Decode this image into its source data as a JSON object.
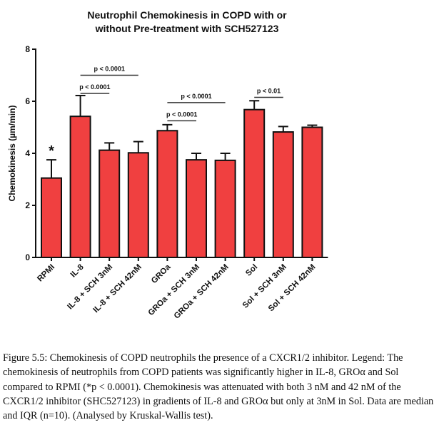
{
  "chart_data": {
    "type": "bar",
    "title": [
      "Neutrophil Chemokinesis in COPD with or",
      "without Pre-treatment with SCH527123"
    ],
    "xlabel": "",
    "ylabel": "Chemokinesis (µm/min)",
    "ylim": [
      0,
      8
    ],
    "yticks": [
      "0",
      "2",
      "4",
      "6",
      "8"
    ],
    "grid": false,
    "categories": [
      "RPMI",
      "IL-8",
      "IL-8 + SCH 3nM",
      "IL-8 + SCH 42nM",
      "GROa",
      "GROa + SCH 3nM",
      "GROa + SCH 42nM",
      "Sol",
      "Sol + SCH 3nM",
      "Sol + SCH 42nM"
    ],
    "values": [
      3.05,
      5.42,
      4.12,
      4.02,
      4.87,
      3.75,
      3.73,
      5.68,
      4.82,
      5.0
    ],
    "error_upper": [
      3.75,
      6.22,
      4.4,
      4.45,
      5.1,
      4.0,
      4.0,
      6.02,
      5.03,
      5.08
    ],
    "bar_color": "#f04040",
    "annotations": [
      {
        "type": "asterisk",
        "category": "RPMI",
        "text": "*"
      },
      {
        "type": "bracket",
        "from": "IL-8",
        "to": "IL-8 + SCH 42nM",
        "text": "p < 0.0001",
        "y": 7.0
      },
      {
        "type": "bracket",
        "from": "IL-8",
        "to": "IL-8 + SCH 3nM",
        "text": "p < 0.0001",
        "y": 6.3
      },
      {
        "type": "bracket",
        "from": "GROa",
        "to": "GROa + SCH 42nM",
        "text": "p < 0.0001",
        "y": 5.95
      },
      {
        "type": "bracket",
        "from": "GROa",
        "to": "GROa + SCH 3nM",
        "text": "p < 0.0001",
        "y": 5.25
      },
      {
        "type": "bracket",
        "from": "Sol",
        "to": "Sol + SCH 3nM",
        "text": "p < 0.01",
        "y": 6.15
      }
    ]
  },
  "caption": "Figure 5.5: Chemokinesis of COPD neutrophils the presence of a CXCR1/2 inhibitor. Legend: The chemokinesis of neutrophils from COPD patients was significantly higher in IL-8, GROα and Sol compared to RPMI (*p < 0.0001). Chemokinesis was attenuated with both 3 nM and 42 nM of the CXCR1/2 inhibitor (SHC527123) in gradients of IL-8 and GROα but only at 3nM in Sol. Data are median and IQR (n=10). (Analysed by Kruskal-Wallis test)."
}
